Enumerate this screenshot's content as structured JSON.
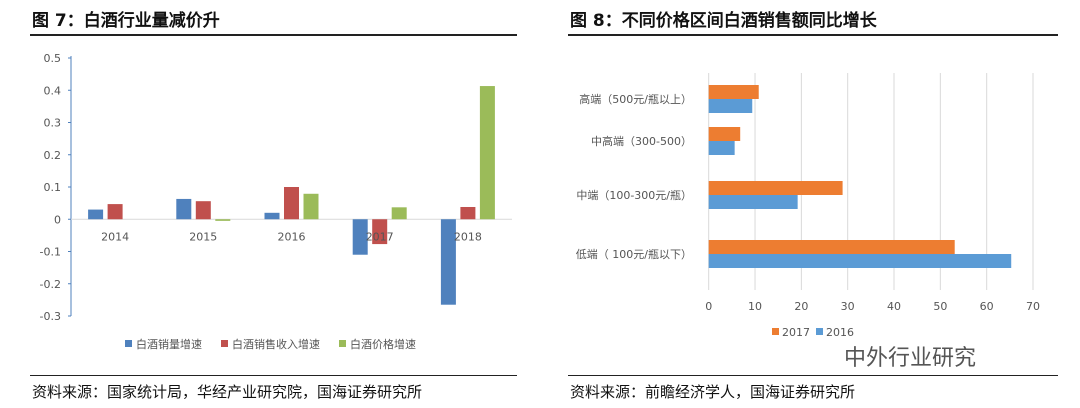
{
  "left": {
    "title": "图 7：白酒行业量减价升",
    "source": "资料来源：国家统计局，华经产业研究院，国海证券研究所"
  },
  "right": {
    "title": "图 8：不同价格区间白酒销售额同比增长",
    "source": "资料来源：前瞻经济学人，国海证券研究所"
  },
  "watermark": "中外行业研究",
  "chart_data": [
    {
      "type": "bar",
      "categories": [
        "2014",
        "2015",
        "2016",
        "2017",
        "2018"
      ],
      "series": [
        {
          "name": "白酒销量增速",
          "color": "#4f81bd",
          "values": [
            0.03,
            0.063,
            0.02,
            -0.11,
            -0.265
          ]
        },
        {
          "name": "白酒销售收入增速",
          "color": "#c0504d",
          "values": [
            0.047,
            0.056,
            0.1,
            -0.077,
            0.038
          ]
        },
        {
          "name": "白酒价格增速",
          "color": "#9bbb59",
          "values": [
            0,
            -0.005,
            0.079,
            0.037,
            0.413
          ]
        }
      ],
      "ylim": [
        -0.3,
        0.5
      ],
      "yticks": [
        "0.5",
        "0.4",
        "0.3",
        "0.2",
        "0.1",
        "0",
        "-0.1",
        "-0.2",
        "-0.3"
      ],
      "legend": "bottom",
      "grid": false
    },
    {
      "type": "bar",
      "orientation": "horizontal",
      "categories": [
        "高端（500元/瓶以上）",
        "中高端（300-500）",
        "中端（100-300元/瓶）",
        "低端（ 100元/瓶以下）"
      ],
      "series": [
        {
          "name": "2017",
          "color": "#ed7d31",
          "values": [
            10.8,
            6.8,
            28.9,
            53.1
          ]
        },
        {
          "name": "2016",
          "color": "#5b9bd5",
          "values": [
            9.4,
            5.6,
            19.2,
            65.3
          ]
        }
      ],
      "xlim": [
        0,
        70
      ],
      "xticks": [
        "0",
        "10",
        "20",
        "30",
        "40",
        "50",
        "60",
        "70"
      ],
      "legend": "bottom",
      "grid": true
    }
  ]
}
